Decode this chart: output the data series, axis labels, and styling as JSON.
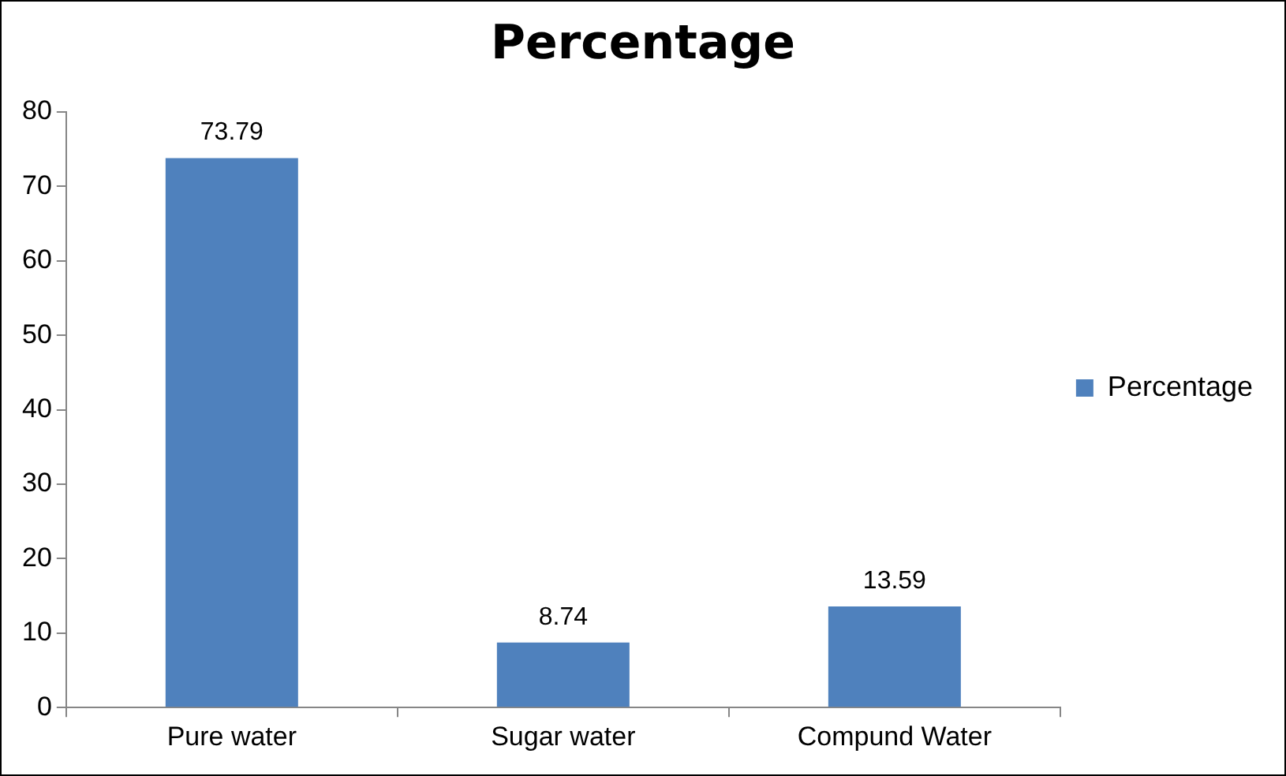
{
  "chart_data": {
    "type": "bar",
    "title": "Percentage",
    "categories": [
      "Pure water",
      "Sugar water",
      "Compund Water"
    ],
    "series": [
      {
        "name": "Percentage",
        "color": "#4f81bd",
        "values": [
          73.79,
          8.74,
          13.59
        ]
      }
    ],
    "ylim": [
      0,
      80
    ],
    "yticks": [
      0,
      10,
      20,
      30,
      40,
      50,
      60,
      70,
      80
    ],
    "grid": false,
    "legend": "right",
    "data_labels": true
  }
}
